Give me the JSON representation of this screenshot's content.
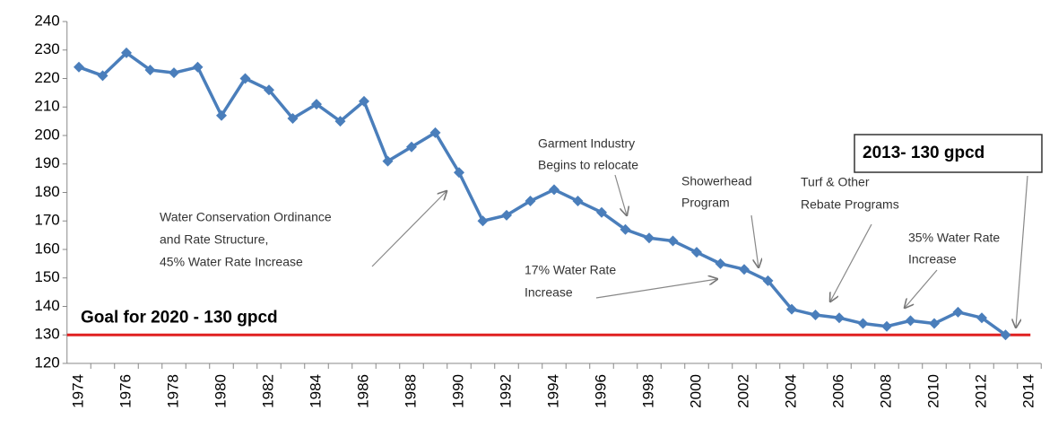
{
  "chart_data": {
    "type": "line",
    "categories": [
      "1974",
      null,
      "1976",
      null,
      "1978",
      null,
      "1980",
      null,
      "1982",
      null,
      "1984",
      null,
      "1986",
      null,
      "1988",
      null,
      "1990",
      null,
      "1992",
      null,
      "1994",
      null,
      "1996",
      null,
      "1998",
      null,
      "2000",
      null,
      "2002",
      null,
      "2004",
      null,
      "2006",
      null,
      "2008",
      null,
      "2010",
      null,
      "2012",
      null,
      "2014"
    ],
    "series": [
      {
        "color": "#4a7ebb",
        "values": [
          224,
          221,
          229,
          223,
          222,
          224,
          207,
          220,
          216,
          206,
          211,
          205,
          212,
          191,
          196,
          201,
          187,
          170,
          172,
          177,
          181,
          177,
          173,
          167,
          164,
          163,
          159,
          155,
          153,
          149,
          139,
          137,
          136,
          134,
          133,
          135,
          134,
          138,
          136,
          130,
          null
        ]
      }
    ],
    "ylim": [
      120,
      240
    ],
    "yticks": [
      120,
      130,
      140,
      150,
      160,
      170,
      180,
      190,
      200,
      210,
      220,
      230,
      240
    ],
    "grid": false,
    "goal": {
      "value": 130,
      "label": "Goal for 2020 - 130 gpcd",
      "color": "#e02020"
    },
    "annotations": [
      {
        "lines": [
          "Water Conservation Ordinance",
          "and Rate Structure,",
          "45% Water Rate Increase"
        ]
      },
      {
        "lines": [
          "Garment Industry",
          "Begins to relocate"
        ]
      },
      {
        "lines": [
          "Showerhead",
          "Program"
        ]
      },
      {
        "lines": [
          "17% Water Rate",
          "Increase"
        ]
      },
      {
        "lines": [
          "Turf  & Other",
          "Rebate Programs"
        ]
      },
      {
        "lines": [
          "35% Water Rate",
          "Increase"
        ]
      },
      {
        "lines": [
          "2013- 130 gpcd"
        ]
      }
    ]
  }
}
